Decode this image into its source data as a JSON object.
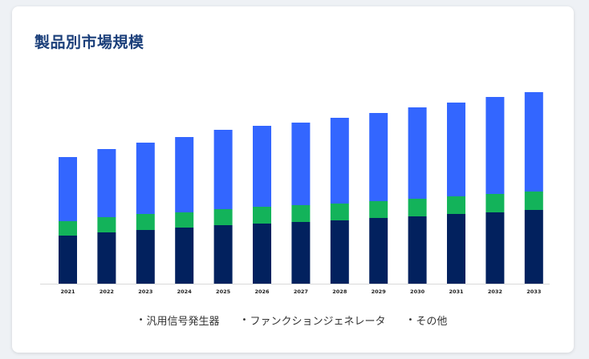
{
  "card": {
    "title": "製品別市場規模"
  },
  "chart_data": {
    "type": "bar",
    "stacked": true,
    "categories": [
      "2021",
      "2022",
      "2023",
      "2024",
      "2025",
      "2026",
      "2027",
      "2028",
      "2029",
      "2030",
      "2031",
      "2032",
      "2033"
    ],
    "series": [
      {
        "name": "汎用信号発生器",
        "color": "#02215e",
        "values": [
          60,
          64,
          67,
          70,
          73,
          75,
          77,
          79,
          82,
          84,
          87,
          89,
          92
        ]
      },
      {
        "name": "ファンクションジェネレータ",
        "color": "#13b35a",
        "values": [
          18,
          19,
          20,
          19,
          20,
          21,
          21,
          21,
          21,
          22,
          22,
          23,
          23
        ]
      },
      {
        "name": "その他",
        "color": "#3366ff",
        "values": [
          80,
          85,
          89,
          94,
          99,
          101,
          103,
          107,
          110,
          114,
          117,
          121,
          124
        ]
      }
    ],
    "ylim": [
      0,
      250
    ],
    "grid": false,
    "legend_position": "bottom"
  }
}
